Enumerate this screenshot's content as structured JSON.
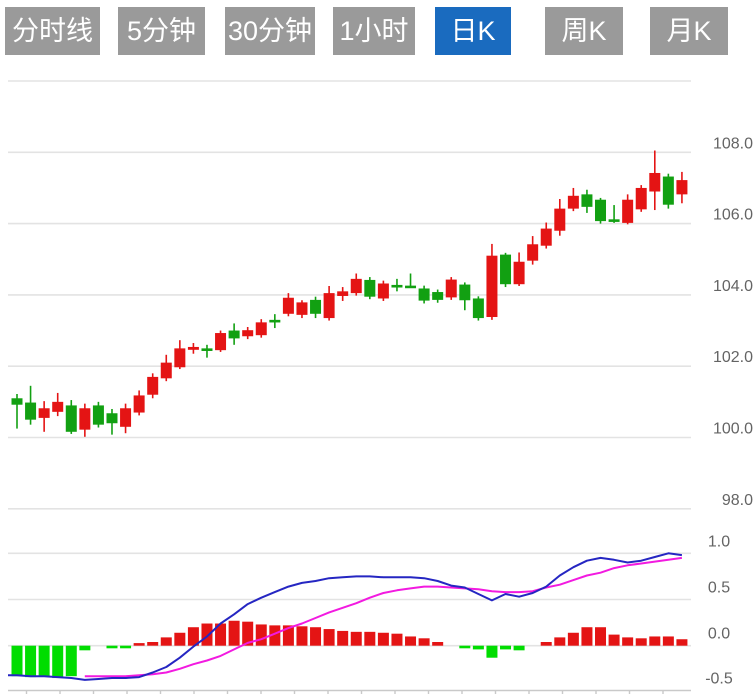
{
  "tabs": [
    {
      "label": "分时线",
      "selected": false
    },
    {
      "label": "5分钟",
      "selected": false
    },
    {
      "label": "30分钟",
      "selected": false
    },
    {
      "label": "1小时",
      "selected": false
    },
    {
      "label": "日K",
      "selected": true
    },
    {
      "label": "周K",
      "selected": false
    },
    {
      "label": "月K",
      "selected": false
    }
  ],
  "colors": {
    "tab_bg": "#9a9a9a",
    "tab_selected_bg": "#1a6bbf",
    "tab_text": "#ffffff",
    "candle_up": "#e41414",
    "candle_down": "#12a012",
    "hist_up": "#e41414",
    "hist_down": "#00dd00",
    "dif_line": "#2526c2",
    "dea_line": "#f21ae0",
    "grid": "#e3e3e3",
    "axis": "#c9c9c9",
    "label": "#646464"
  },
  "chart_data": [
    {
      "type": "candlestick",
      "panel": "price",
      "title": "",
      "ylabel": "",
      "grid": true,
      "legend": "none",
      "y_axis": {
        "ticks": [
          110,
          108,
          106,
          104,
          102,
          100,
          98
        ],
        "tick_labels": [
          "",
          "108.0",
          "106.0",
          "104.0",
          "102.0",
          "100.0",
          "98.0"
        ],
        "range": [
          97.5,
          110.0
        ]
      },
      "candles": [
        {
          "o": 101.1,
          "h": 101.22,
          "l": 100.25,
          "c": 100.92
        },
        {
          "o": 100.98,
          "h": 101.45,
          "l": 100.36,
          "c": 100.5
        },
        {
          "o": 100.55,
          "h": 101.02,
          "l": 100.16,
          "c": 100.82
        },
        {
          "o": 100.72,
          "h": 101.25,
          "l": 100.6,
          "c": 101.0
        },
        {
          "o": 100.9,
          "h": 101.05,
          "l": 100.1,
          "c": 100.16
        },
        {
          "o": 100.22,
          "h": 100.95,
          "l": 100.02,
          "c": 100.82
        },
        {
          "o": 100.9,
          "h": 101.0,
          "l": 100.28,
          "c": 100.36
        },
        {
          "o": 100.68,
          "h": 100.8,
          "l": 100.08,
          "c": 100.4
        },
        {
          "o": 100.3,
          "h": 100.95,
          "l": 100.12,
          "c": 100.82
        },
        {
          "o": 100.7,
          "h": 101.32,
          "l": 100.62,
          "c": 101.18
        },
        {
          "o": 101.2,
          "h": 101.8,
          "l": 101.1,
          "c": 101.7
        },
        {
          "o": 101.66,
          "h": 102.32,
          "l": 101.58,
          "c": 102.1
        },
        {
          "o": 101.97,
          "h": 102.73,
          "l": 101.92,
          "c": 102.5
        },
        {
          "o": 102.46,
          "h": 102.65,
          "l": 102.35,
          "c": 102.54
        },
        {
          "o": 102.5,
          "h": 102.6,
          "l": 102.24,
          "c": 102.44
        },
        {
          "o": 102.45,
          "h": 103.0,
          "l": 102.4,
          "c": 102.93
        },
        {
          "o": 103.0,
          "h": 103.2,
          "l": 102.6,
          "c": 102.78
        },
        {
          "o": 102.84,
          "h": 103.1,
          "l": 102.76,
          "c": 103.01
        },
        {
          "o": 102.87,
          "h": 103.32,
          "l": 102.8,
          "c": 103.23
        },
        {
          "o": 103.3,
          "h": 103.46,
          "l": 103.07,
          "c": 103.25
        },
        {
          "o": 103.47,
          "h": 104.05,
          "l": 103.4,
          "c": 103.92
        },
        {
          "o": 103.44,
          "h": 103.85,
          "l": 103.35,
          "c": 103.79
        },
        {
          "o": 103.86,
          "h": 103.95,
          "l": 103.35,
          "c": 103.47
        },
        {
          "o": 103.35,
          "h": 104.25,
          "l": 103.28,
          "c": 104.05
        },
        {
          "o": 103.97,
          "h": 104.22,
          "l": 103.83,
          "c": 104.1
        },
        {
          "o": 104.05,
          "h": 104.6,
          "l": 103.98,
          "c": 104.45
        },
        {
          "o": 104.42,
          "h": 104.5,
          "l": 103.88,
          "c": 103.95
        },
        {
          "o": 103.9,
          "h": 104.4,
          "l": 103.83,
          "c": 104.32
        },
        {
          "o": 104.28,
          "h": 104.45,
          "l": 104.1,
          "c": 104.24
        },
        {
          "o": 104.26,
          "h": 104.6,
          "l": 104.2,
          "c": 104.24
        },
        {
          "o": 104.18,
          "h": 104.26,
          "l": 103.76,
          "c": 103.84
        },
        {
          "o": 104.08,
          "h": 104.15,
          "l": 103.78,
          "c": 103.86
        },
        {
          "o": 103.93,
          "h": 104.5,
          "l": 103.86,
          "c": 104.43
        },
        {
          "o": 104.29,
          "h": 104.35,
          "l": 103.57,
          "c": 103.85
        },
        {
          "o": 103.9,
          "h": 103.96,
          "l": 103.28,
          "c": 103.35
        },
        {
          "o": 103.38,
          "h": 105.43,
          "l": 103.3,
          "c": 105.1
        },
        {
          "o": 105.13,
          "h": 105.18,
          "l": 104.22,
          "c": 104.3
        },
        {
          "o": 104.3,
          "h": 105.19,
          "l": 104.25,
          "c": 104.93
        },
        {
          "o": 104.96,
          "h": 105.65,
          "l": 104.85,
          "c": 105.42
        },
        {
          "o": 105.38,
          "h": 106.03,
          "l": 105.3,
          "c": 105.86
        },
        {
          "o": 105.8,
          "h": 106.69,
          "l": 105.66,
          "c": 106.42
        },
        {
          "o": 106.42,
          "h": 107.0,
          "l": 106.35,
          "c": 106.78
        },
        {
          "o": 106.82,
          "h": 106.95,
          "l": 106.3,
          "c": 106.47
        },
        {
          "o": 106.67,
          "h": 106.72,
          "l": 106.0,
          "c": 106.07
        },
        {
          "o": 106.12,
          "h": 106.52,
          "l": 106.02,
          "c": 106.08
        },
        {
          "o": 106.02,
          "h": 106.82,
          "l": 105.98,
          "c": 106.67
        },
        {
          "o": 106.4,
          "h": 107.08,
          "l": 106.33,
          "c": 107.0
        },
        {
          "o": 106.9,
          "h": 108.05,
          "l": 106.38,
          "c": 107.42
        },
        {
          "o": 107.32,
          "h": 107.4,
          "l": 106.42,
          "c": 106.53
        },
        {
          "o": 106.82,
          "h": 107.45,
          "l": 106.57,
          "c": 107.22
        }
      ]
    },
    {
      "type": "macd",
      "panel": "indicator",
      "grid": true,
      "y_axis": {
        "ticks": [
          1.0,
          0.5,
          0.0,
          -0.5
        ],
        "tick_labels": [
          "1.0",
          "0.5",
          "0.0",
          "-0.5"
        ],
        "range": [
          -0.5,
          1.05
        ]
      },
      "histogram": [
        -0.33,
        -0.34,
        -0.33,
        -0.35,
        -0.33,
        -0.05,
        0,
        -0.02,
        -0.02,
        0.02,
        0.04,
        0.09,
        0.14,
        0.2,
        0.24,
        0.24,
        0.27,
        0.26,
        0.23,
        0.22,
        0.22,
        0.21,
        0.2,
        0.18,
        0.16,
        0.15,
        0.15,
        0.14,
        0.13,
        0.1,
        0.08,
        0.04,
        0,
        -0.02,
        -0.04,
        -0.13,
        -0.04,
        -0.05,
        0,
        0.04,
        0.09,
        0.14,
        0.2,
        0.2,
        0.12,
        0.09,
        0.08,
        0.1,
        0.1,
        0.07
      ],
      "dif": [
        -0.32,
        -0.33,
        -0.33,
        -0.34,
        -0.35,
        -0.37,
        -0.36,
        -0.35,
        -0.35,
        -0.34,
        -0.29,
        -0.23,
        -0.13,
        -0.01,
        0.1,
        0.24,
        0.34,
        0.45,
        0.52,
        0.58,
        0.64,
        0.68,
        0.7,
        0.73,
        0.74,
        0.75,
        0.75,
        0.74,
        0.74,
        0.74,
        0.73,
        0.7,
        0.65,
        0.63,
        0.56,
        0.49,
        0.56,
        0.53,
        0.57,
        0.64,
        0.76,
        0.85,
        0.92,
        0.95,
        0.93,
        0.9,
        0.92,
        0.96,
        1.0,
        0.98
      ],
      "dea": [
        null,
        null,
        null,
        null,
        null,
        -0.33,
        -0.33,
        -0.33,
        -0.33,
        -0.32,
        -0.31,
        -0.29,
        -0.25,
        -0.2,
        -0.16,
        -0.11,
        -0.04,
        0.03,
        0.07,
        0.13,
        0.19,
        0.24,
        0.3,
        0.36,
        0.41,
        0.46,
        0.52,
        0.57,
        0.6,
        0.62,
        0.64,
        0.64,
        0.63,
        0.62,
        0.61,
        0.59,
        0.58,
        0.58,
        0.59,
        0.63,
        0.66,
        0.71,
        0.76,
        0.79,
        0.84,
        0.87,
        0.89,
        0.91,
        0.93,
        0.95
      ]
    }
  ]
}
